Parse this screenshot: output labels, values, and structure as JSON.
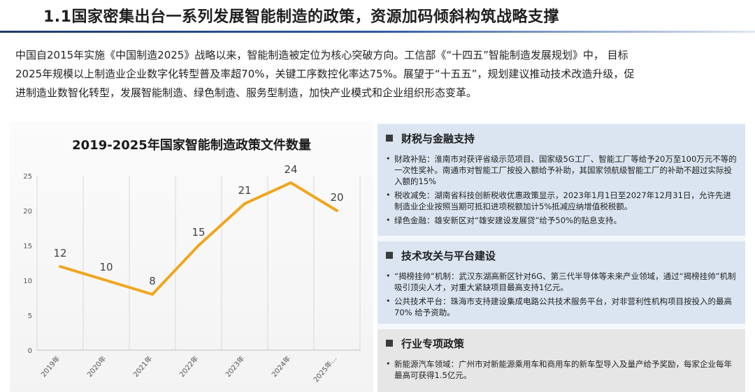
{
  "title": "1.1国家密集出台一系列发展智能制造的政策，资源加码倾斜构筑战略支撑",
  "intro": [
    "中国自2015年实施《中国制造2025》战略以来，智能制造被定位为核心突破方向。工信部《“十四五”智能制造发展规划》中， 目标",
    "2025年规模以上制造业企业数字化转型普及率超70%，关键工序数控化率达75%。展望于“十五五”，规划建议推动技术改造升级，促",
    "进制造业数智化转型，发展智能制造、绿色制造、服务型制造，加快产业模式和企业组织形态变革。"
  ],
  "chart_data": {
    "type": "line",
    "title": "2019-2025年国家智能制造政策文件数量",
    "categories": [
      "2019年",
      "2020年",
      "2021年",
      "2022年",
      "2023年",
      "2024年",
      "2025年..."
    ],
    "values": [
      12,
      10,
      8,
      15,
      21,
      24,
      20
    ],
    "ylim": [
      0,
      25
    ],
    "yticks": [
      0,
      5,
      10,
      15,
      20,
      25
    ],
    "xlabel": "",
    "ylabel": "",
    "grid": "vertical",
    "line_color": "#f0a61f"
  },
  "panel": {
    "sections": [
      {
        "heading": "财税与金融支持",
        "items": [
          "财政补贴：淮南市对获评省级示范项目、国家级5G工厂、智能工厂等给予20万至100万元不等的一次性奖补。南通市对智能工厂按投入额给予补助，其国家领航级智能工厂的补助不超过实际投入额的15%",
          "税收减免：湖南省科技创新税收优惠政策显示，2023年1月1日至2027年12月31日，允许先进制造业企业按照当期可抵扣进项税额加计5%抵减应纳增值税税额。",
          "绿色金融：雄安新区对“雄安建设发展贷”给予50%的贴息支持。"
        ]
      },
      {
        "heading": "技术攻关与平台建设",
        "items": [
          "“揭榜挂帅”机制：武汉东湖高新区针对6G、第三代半导体等未来产业领域，通过“揭榜挂帅”机制吸引顶尖人才，对重大紧缺项目最高支持1亿元。",
          "公共技术平台：珠海市支持建设集成电路公共技术服务平台，对非营利性机构项目按投入的最高70% 给予资助。"
        ]
      },
      {
        "heading": "行业专项政策",
        "items": [
          "新能源汽车领域：广州市对新能源乘用车和商用车的新车型导入及量产给予奖励，每家企业每年最高可获得1.5亿元。"
        ]
      }
    ]
  }
}
